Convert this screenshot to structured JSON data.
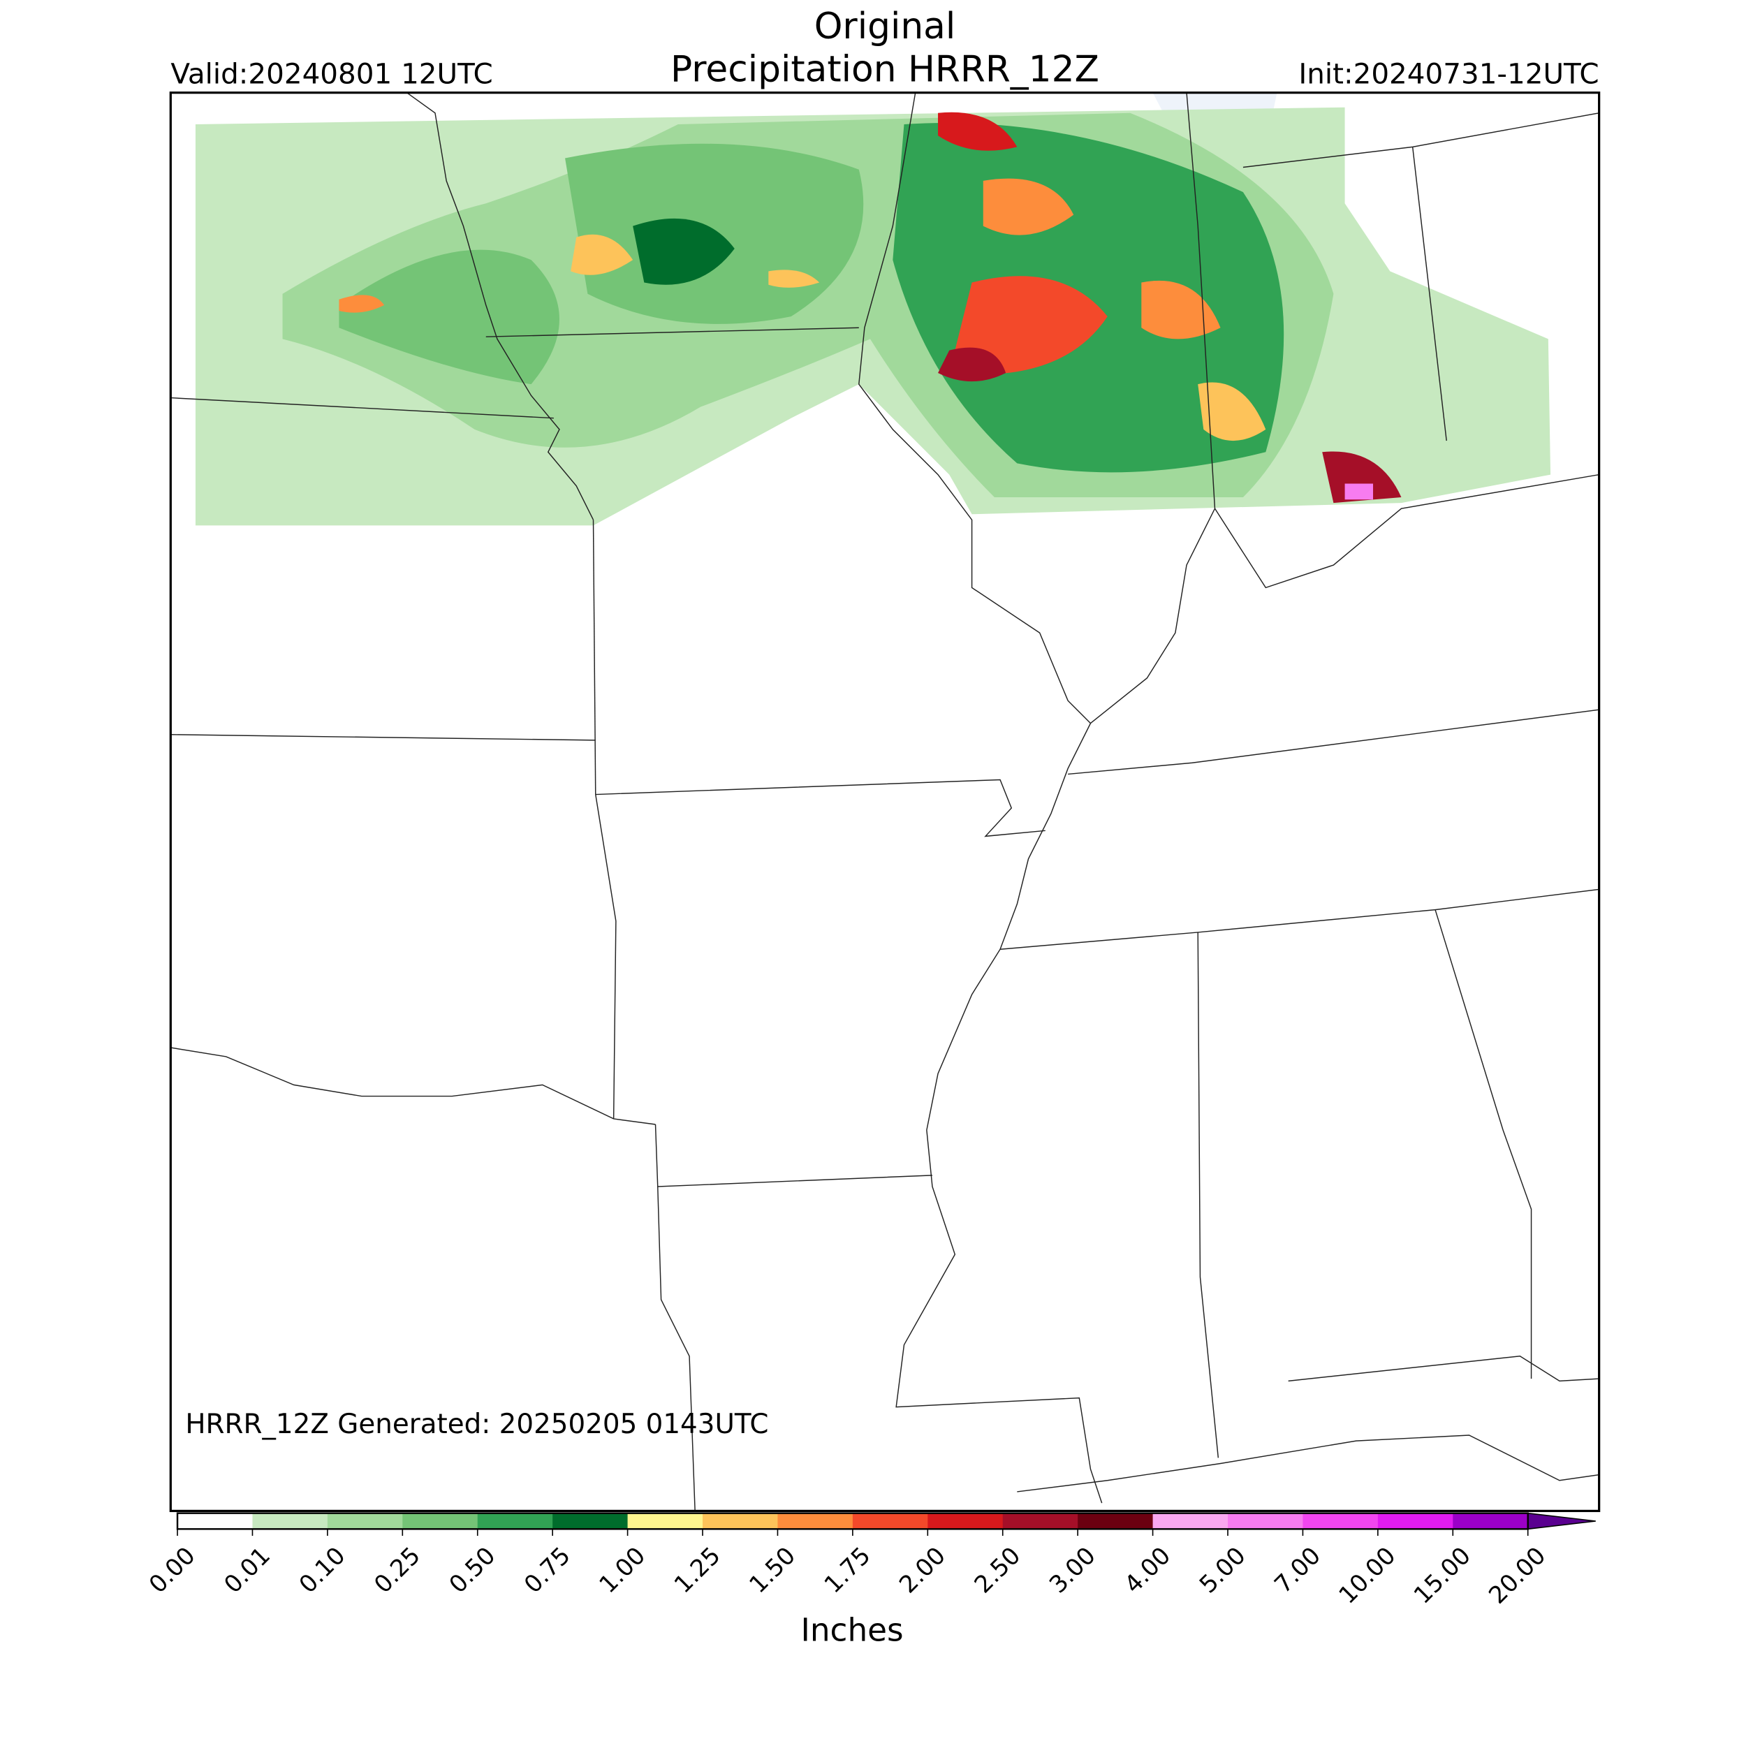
{
  "header": {
    "title": [
      "Original",
      "Precipitation HRRR_12Z"
    ],
    "valid": "Valid:20240801 12UTC",
    "init": "Init:20240731-12UTC"
  },
  "footer_note": "HRRR_12Z Generated: 20250205 0143UTC",
  "colorbar": {
    "label": "Inches",
    "ticks": [
      {
        "value": 0,
        "label": "0.00"
      },
      {
        "value": 0.01,
        "label": "0.01"
      },
      {
        "value": 0.1,
        "label": "0.10"
      },
      {
        "value": 0.25,
        "label": "0.25"
      },
      {
        "value": 0.5,
        "label": "0.50"
      },
      {
        "value": 0.75,
        "label": "0.75"
      },
      {
        "value": 1,
        "label": "1.00"
      },
      {
        "value": 1.25,
        "label": "1.25"
      },
      {
        "value": 1.5,
        "label": "1.50"
      },
      {
        "value": 1.75,
        "label": "1.75"
      },
      {
        "value": 2,
        "label": "2.00"
      },
      {
        "value": 2.5,
        "label": "2.50"
      },
      {
        "value": 3,
        "label": "3.00"
      },
      {
        "value": 4,
        "label": "4.00"
      },
      {
        "value": 5,
        "label": "5.00"
      },
      {
        "value": 7,
        "label": "7.00"
      },
      {
        "value": 10,
        "label": "10.00"
      },
      {
        "value": 15,
        "label": "15.00"
      },
      {
        "value": 20,
        "label": "20.00"
      }
    ],
    "colors": [
      "#ffffff",
      "#c7e9c0",
      "#a1d99b",
      "#74c476",
      "#31a354",
      "#006d2c",
      "#fff68f",
      "#fdc35a",
      "#fd8d3c",
      "#f3492a",
      "#d7191c",
      "#a50f28",
      "#6b0010",
      "#f9a8f0",
      "#f77cf0",
      "#f246f0",
      "#e01cf0",
      "#9b00c8",
      "#5a0090"
    ]
  }
}
